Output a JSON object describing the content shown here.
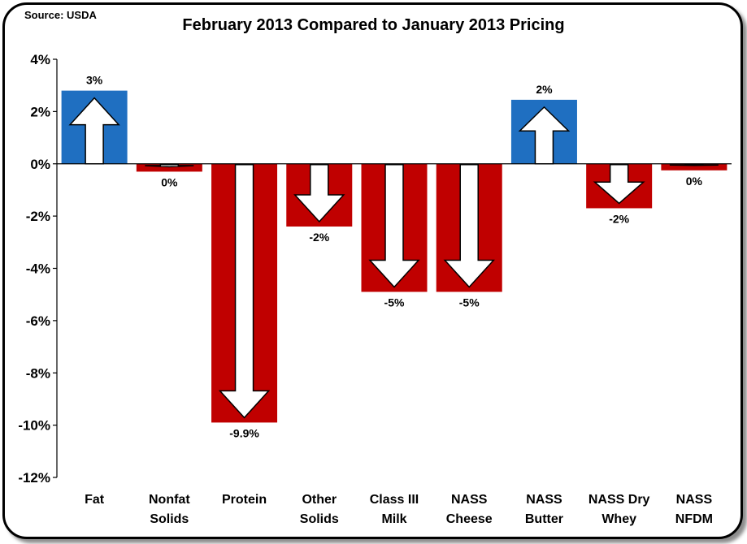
{
  "source": "Source: USDA",
  "chart_data": {
    "type": "bar",
    "title": "February 2013 Compared to January 2013 Pricing",
    "xlabel": "",
    "ylabel": "",
    "ylim": [
      -12,
      4
    ],
    "yticks": [
      "4%",
      "2%",
      "0%",
      "-2%",
      "-4%",
      "-6%",
      "-8%",
      "-10%",
      "-12%"
    ],
    "grid": false,
    "categories": [
      [
        "Fat"
      ],
      [
        "Nonfat",
        "Solids"
      ],
      [
        "Protein"
      ],
      [
        "Other",
        "Solids"
      ],
      [
        "Class III",
        "Milk"
      ],
      [
        "NASS",
        "Cheese"
      ],
      [
        "NASS",
        "Butter"
      ],
      [
        "NASS Dry",
        "Whey"
      ],
      [
        "NASS",
        "NFDM"
      ]
    ],
    "values": [
      2.8,
      -0.3,
      -9.9,
      -2.4,
      -4.9,
      -4.9,
      2.45,
      -1.7,
      -0.25
    ],
    "data_labels": [
      "3%",
      "0%",
      "-9.9%",
      "-2%",
      "-5%",
      "-5%",
      "2%",
      "-2%",
      "0%"
    ],
    "colors": {
      "positive": "#1F6FC1",
      "negative": "#C00000",
      "arrow_fill": "#ffffff",
      "arrow_stroke": "#000000"
    }
  }
}
